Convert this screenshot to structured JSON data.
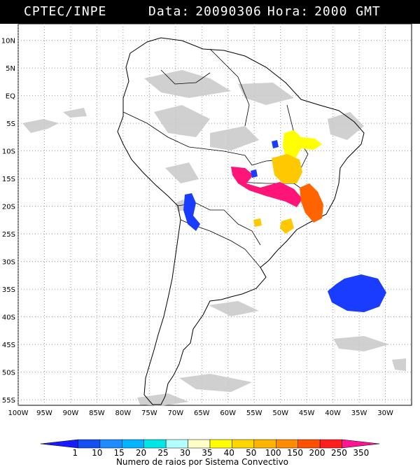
{
  "header": {
    "org": "CPTEC/INPE",
    "data_label": "Data:",
    "data_value": "20090306",
    "hora_label": "Hora:",
    "hora_value": "2000 GMT"
  },
  "map": {
    "lon_range": [
      -100,
      -25
    ],
    "lat_range": [
      -56,
      13
    ],
    "lat_ticks": [
      "10N",
      "5N",
      "EQ",
      "5S",
      "10S",
      "15S",
      "20S",
      "25S",
      "30S",
      "35S",
      "40S",
      "45S",
      "50S",
      "55S"
    ],
    "lon_ticks": [
      "100W",
      "95W",
      "90W",
      "85W",
      "80W",
      "75W",
      "70W",
      "65W",
      "60W",
      "55W",
      "50W",
      "45W",
      "40W",
      "35W",
      "30W"
    ],
    "grid": true
  },
  "legend": {
    "labels": [
      "1",
      "10",
      "15",
      "20",
      "25",
      "30",
      "35",
      "40",
      "50",
      "100",
      "150",
      "200",
      "250",
      "350"
    ],
    "colors": [
      "#1a1aff",
      "#1450f0",
      "#1e8cff",
      "#00b4ff",
      "#00e6e6",
      "#b4ffff",
      "#ffffc8",
      "#ffff00",
      "#ffd700",
      "#ffb400",
      "#ff8c00",
      "#ff5000",
      "#ff1e1e",
      "#ff1493"
    ],
    "title": "Numero de raios por Sistema Convectivo"
  },
  "clusters": [
    {
      "name": "north-yellow",
      "color": "#ffff00"
    },
    {
      "name": "bahia-gold",
      "color": "#ffc800"
    },
    {
      "name": "central-magenta",
      "color": "#ff1478"
    },
    {
      "name": "southeast-orange",
      "color": "#ff6400"
    },
    {
      "name": "atlantic-blue",
      "color": "#1a3cff"
    },
    {
      "name": "andes-blue",
      "color": "#1a3cff"
    }
  ]
}
